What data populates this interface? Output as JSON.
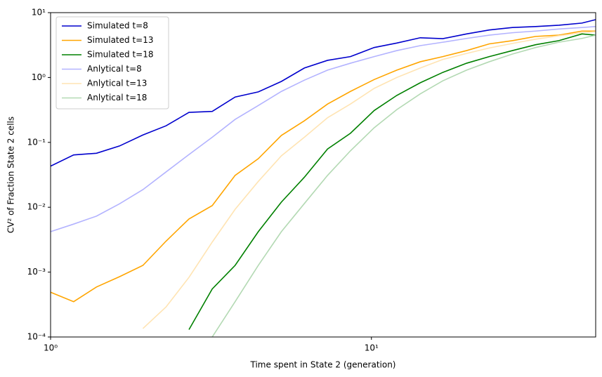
{
  "chart_data": {
    "type": "line",
    "xlabel": "Time spent in State 2 (generation)",
    "ylabel": "CV² of Fraction State 2 cells",
    "xscale": "log",
    "yscale": "log",
    "xlim": [
      1,
      50
    ],
    "ylim": [
      0.0001,
      10
    ],
    "xticks": [
      {
        "value": 1,
        "label": "10⁰"
      },
      {
        "value": 10,
        "label": "10¹"
      }
    ],
    "yticks": [
      {
        "value": 0.0001,
        "label": "10⁻⁴"
      },
      {
        "value": 0.001,
        "label": "10⁻³"
      },
      {
        "value": 0.01,
        "label": "10⁻²"
      },
      {
        "value": 0.1,
        "label": "10⁻¹"
      },
      {
        "value": 1,
        "label": "10⁰"
      },
      {
        "value": 10,
        "label": "10¹"
      }
    ],
    "legend": "upper left",
    "x": [
      1,
      1.18,
      1.39,
      1.64,
      1.94,
      2.29,
      2.7,
      3.19,
      3.76,
      4.44,
      5.24,
      6.18,
      7.3,
      8.6,
      10.2,
      12,
      14.2,
      16.7,
      19.8,
      23.3,
      27.5,
      32.5,
      38.4,
      45.3,
      50
    ],
    "series": [
      {
        "name": "Simulated t=8",
        "color": "#0000cd",
        "values": [
          0.043,
          0.064,
          0.068,
          0.088,
          0.13,
          0.18,
          0.29,
          0.3,
          0.5,
          0.6,
          0.87,
          1.4,
          1.84,
          2.1,
          2.9,
          3.4,
          4.1,
          3.97,
          4.7,
          5.4,
          5.9,
          6.1,
          6.4,
          6.9,
          7.8
        ]
      },
      {
        "name": "Simulated t=13",
        "color": "#ffa500",
        "values": [
          0.00049,
          0.00035,
          0.00059,
          0.00085,
          0.00127,
          0.003,
          0.0066,
          0.0106,
          0.031,
          0.056,
          0.128,
          0.215,
          0.39,
          0.61,
          0.93,
          1.3,
          1.75,
          2.1,
          2.6,
          3.3,
          3.7,
          4.3,
          4.5,
          5.2,
          5.2
        ]
      },
      {
        "name": "Simulated t=18",
        "color": "#008000",
        "values": [
          null,
          null,
          null,
          null,
          null,
          null,
          0.00013,
          0.00055,
          0.00127,
          0.0042,
          0.012,
          0.029,
          0.079,
          0.138,
          0.31,
          0.53,
          0.83,
          1.2,
          1.66,
          2.1,
          2.6,
          3.2,
          3.7,
          4.7,
          4.5
        ]
      },
      {
        "name": "Anlytical t=8",
        "color": "#b3b3ff",
        "values": [
          0.0042,
          0.0055,
          0.0073,
          0.0113,
          0.0187,
          0.035,
          0.065,
          0.12,
          0.226,
          0.37,
          0.61,
          0.91,
          1.3,
          1.66,
          2.1,
          2.6,
          3.1,
          3.5,
          4.0,
          4.5,
          4.9,
          5.2,
          5.6,
          5.9,
          6.1
        ]
      },
      {
        "name": "Anlytical t=13",
        "color": "#ffe4b3",
        "values": [
          null,
          null,
          null,
          null,
          0.000135,
          0.00029,
          0.00083,
          0.0029,
          0.0093,
          0.025,
          0.062,
          0.12,
          0.24,
          0.39,
          0.68,
          1.0,
          1.4,
          1.9,
          2.35,
          2.85,
          3.35,
          3.9,
          4.4,
          4.9,
          5.1
        ]
      },
      {
        "name": "Anlytical t=18",
        "color": "#b3d9b3",
        "values": [
          null,
          null,
          null,
          null,
          null,
          null,
          null,
          0.0001,
          0.00035,
          0.00127,
          0.0042,
          0.0114,
          0.031,
          0.074,
          0.168,
          0.32,
          0.56,
          0.89,
          1.3,
          1.75,
          2.3,
          2.9,
          3.5,
          4.0,
          4.5
        ]
      }
    ]
  }
}
